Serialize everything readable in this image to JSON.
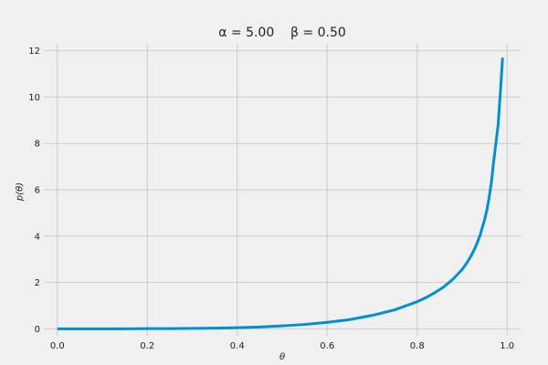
{
  "chart_data": {
    "type": "line",
    "title": "α = 5.00    β = 0.50",
    "xlabel": "θ",
    "ylabel": "p(θ)",
    "xlim": [
      -0.03,
      1.03
    ],
    "ylim": [
      -0.3,
      12.3
    ],
    "x_ticks": [
      0.0,
      0.2,
      0.4,
      0.6,
      0.8,
      1.0
    ],
    "x_tick_labels": [
      "0.0",
      "0.2",
      "0.4",
      "0.6",
      "0.8",
      "1.0"
    ],
    "y_ticks": [
      0,
      2,
      4,
      6,
      8,
      10,
      12
    ],
    "y_tick_labels": [
      "0",
      "2",
      "4",
      "6",
      "8",
      "10",
      "12"
    ],
    "grid": true,
    "legend": "none",
    "series": [
      {
        "color": "#008fd5",
        "x": [
          0.0,
          0.05,
          0.1,
          0.15,
          0.2,
          0.25,
          0.3,
          0.35,
          0.4,
          0.45,
          0.5,
          0.55,
          0.6,
          0.65,
          0.7,
          0.75,
          0.8,
          0.82,
          0.84,
          0.86,
          0.88,
          0.9,
          0.91,
          0.92,
          0.93,
          0.94,
          0.95,
          0.955,
          0.96,
          0.965,
          0.97,
          0.975,
          0.98,
          0.985,
          0.99
        ],
        "y": [
          0.0,
          0.0,
          0.0,
          0.0,
          0.01,
          0.01,
          0.02,
          0.03,
          0.05,
          0.08,
          0.13,
          0.19,
          0.28,
          0.4,
          0.58,
          0.82,
          1.17,
          1.35,
          1.57,
          1.82,
          2.15,
          2.56,
          2.83,
          3.15,
          3.54,
          4.04,
          4.71,
          5.12,
          5.66,
          6.3,
          7.2,
          8.0,
          8.8,
          10.2,
          11.7
        ]
      }
    ]
  }
}
